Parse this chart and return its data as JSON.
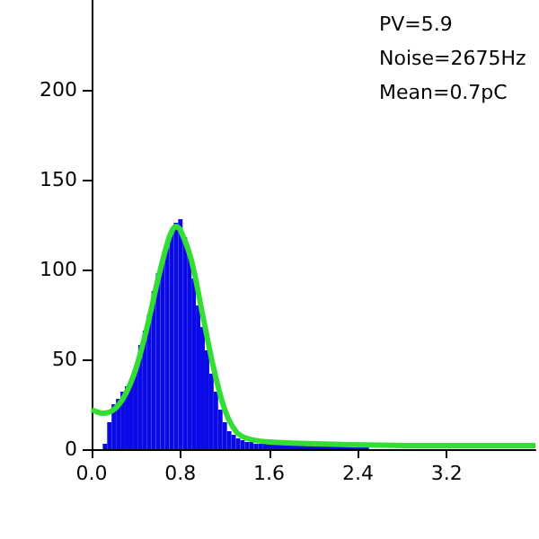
{
  "chart_data": {
    "type": "histogram",
    "bins": [
      0.1,
      0.14,
      0.18,
      0.22,
      0.26,
      0.3,
      0.34,
      0.38,
      0.42,
      0.46,
      0.5,
      0.54,
      0.58,
      0.62,
      0.66,
      0.7,
      0.74,
      0.78,
      0.82,
      0.86,
      0.9,
      0.94,
      0.98,
      1.02,
      1.06,
      1.1,
      1.14,
      1.18,
      1.22,
      1.26,
      1.3,
      1.34,
      1.38,
      1.42,
      1.46,
      1.5,
      1.54,
      2.0,
      2.5
    ],
    "values": [
      3,
      15,
      25,
      28,
      32,
      35,
      38,
      45,
      58,
      66,
      75,
      88,
      98,
      105,
      112,
      120,
      126,
      128,
      118,
      108,
      95,
      80,
      68,
      55,
      42,
      32,
      22,
      15,
      10,
      8,
      6,
      5,
      4,
      4,
      3,
      3,
      3,
      2
    ],
    "color": "#0a0ae6",
    "series": [
      {
        "type": "line",
        "color": "#33dd33",
        "x": [
          0,
          0.1,
          0.2,
          0.3,
          0.4,
          0.5,
          0.6,
          0.7,
          0.76,
          0.8,
          0.9,
          1.0,
          1.1,
          1.2,
          1.3,
          1.4,
          1.6,
          2.0,
          3.0,
          4.0
        ],
        "values": [
          22,
          20,
          22,
          30,
          45,
          68,
          95,
          118,
          124,
          122,
          105,
          75,
          45,
          22,
          10,
          6,
          4,
          3,
          2,
          2
        ]
      }
    ],
    "xlim": [
      0,
      4
    ],
    "xticks": [
      {
        "value": 0,
        "label": "0.0"
      },
      {
        "value": 0.8,
        "label": "0.8"
      },
      {
        "value": 1.6,
        "label": "1.6"
      },
      {
        "value": 2.4,
        "label": "2.4"
      },
      {
        "value": 3.2,
        "label": "3.2"
      }
    ],
    "ylim": [
      0,
      250
    ],
    "yticks": [
      0,
      50,
      100,
      150,
      200
    ],
    "annotations": [
      "PV=5.9",
      "Noise=2675Hz",
      "Mean=0.7pC"
    ]
  }
}
